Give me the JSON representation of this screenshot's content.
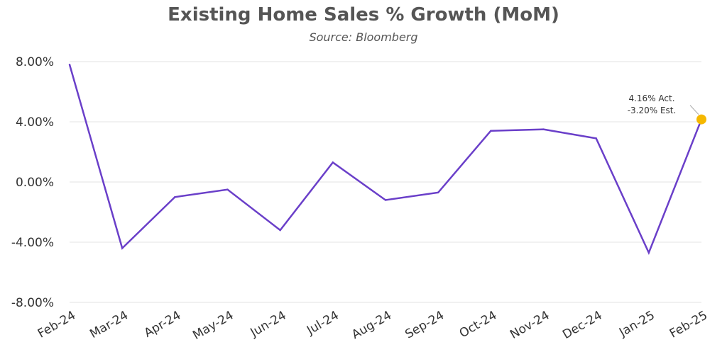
{
  "chart_data": {
    "type": "line",
    "title": "Existing Home Sales % Growth (MoM)",
    "subtitle": "Source: Bloomberg",
    "xlabel": "",
    "ylabel": "",
    "categories": [
      "Feb-24",
      "Mar-24",
      "Apr-24",
      "May-24",
      "Jun-24",
      "Jul-24",
      "Aug-24",
      "Sep-24",
      "Oct-24",
      "Nov-24",
      "Dec-24",
      "Jan-25",
      "Feb-25"
    ],
    "values": [
      7.8,
      -4.4,
      -1.0,
      -0.5,
      -3.2,
      1.3,
      -1.2,
      -0.7,
      3.4,
      3.5,
      2.9,
      -4.7,
      4.16
    ],
    "y_ticks": [
      "8.00%",
      "4.00%",
      "0.00%",
      "-4.00%",
      "-8.00%"
    ],
    "y_tick_values": [
      8,
      4,
      0,
      -4,
      -8
    ],
    "ylim": [
      -8,
      8
    ],
    "grid": true,
    "legend": "none",
    "line_color": "#6a3fc9",
    "highlight_color": "#f5b800",
    "annotation": {
      "category": "Feb-25",
      "lines": [
        "4.16% Act.",
        "-3.20% Est."
      ]
    }
  }
}
